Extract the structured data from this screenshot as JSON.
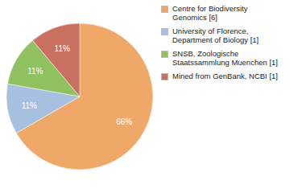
{
  "chart_data": {
    "type": "pie",
    "categories": [
      "Centre for Biodiversity\nGenomics [6]",
      "University of Florence,\nDepartment of Biology [1]",
      "SNSB, Zoologische\nStaatssammlung Muenchen [1]",
      "Mined from GenBank, NCBI [1]"
    ],
    "values": [
      66,
      11,
      11,
      11
    ],
    "value_labels": [
      "66%",
      "11%",
      "11%",
      "11%"
    ],
    "colors": [
      "#F0A868",
      "#A8C0E0",
      "#90C060",
      "#C97060"
    ],
    "data_labels": true,
    "legend": "right"
  }
}
